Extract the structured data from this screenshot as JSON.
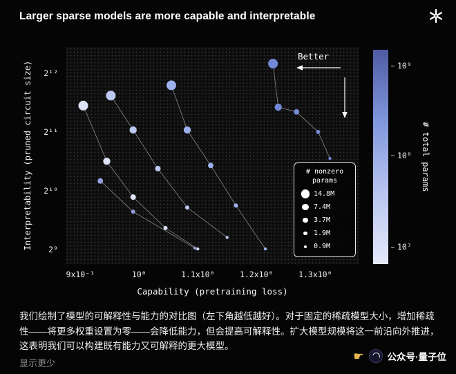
{
  "page": {
    "title": "Larger sparse models are more capable and interpretable",
    "caption": "我们绘制了模型的可解释性与能力的对比图（左下角越低越好）。对于固定的稀疏模型大小，增加稀疏性——将更多权重设置为零——会降低能力，但会提高可解释性。扩大模型规模将这一前沿向外推进，这表明我们可以构建既有能力又可解释的更大模型。",
    "show_less": "显示更少",
    "footer_label": "公众号·量子位"
  },
  "icons": {
    "hand_icon": "☛",
    "openai_logo": "flower-mark",
    "qbitai_logo": "circular-swirl-badge"
  },
  "chart_data": {
    "type": "scatter",
    "title": "Larger sparse models are more capable and interpretable",
    "xlabel": "Capability (pretraining loss)",
    "ylabel": "Interpretability (pruned circuit size)",
    "better_label": "Better",
    "grid": "dotted-background",
    "legend_position": "lower-right-inside",
    "xlim": [
      0.875,
      1.375
    ],
    "ylim_exp": [
      8.75,
      12.45
    ],
    "x_ticks": [
      {
        "value": 0.9,
        "label": "9x10⁻¹"
      },
      {
        "value": 1.0,
        "label": "10⁰"
      },
      {
        "value": 1.1,
        "label": "1.1x10⁰"
      },
      {
        "value": 1.2,
        "label": "1.2x10⁰"
      },
      {
        "value": 1.3,
        "label": "1.3x10⁰"
      }
    ],
    "y_ticks": [
      {
        "exp": 9,
        "label": "2⁹"
      },
      {
        "exp": 10,
        "label": "2¹⁰"
      },
      {
        "exp": 11,
        "label": "2¹¹"
      },
      {
        "exp": 12,
        "label": "2¹²"
      }
    ],
    "legend": {
      "title_lines": [
        "# nonzero",
        "params"
      ],
      "sizes": [
        {
          "label": "14.8M",
          "radius": 7
        },
        {
          "label": "7.4M",
          "radius": 5.2
        },
        {
          "label": "3.7M",
          "radius": 4
        },
        {
          "label": "1.9M",
          "radius": 3
        },
        {
          "label": "0.9M",
          "radius": 2.2
        }
      ]
    },
    "colorbar": {
      "label": "# total params",
      "stops": [
        "#4f5ba3",
        "#8097dc",
        "#b9c5f0",
        "#e4e9fa"
      ],
      "ticks": [
        {
          "label": "10⁹",
          "pos": 0.074
        },
        {
          "label": "10⁸",
          "pos": 0.494
        },
        {
          "label": "10⁷",
          "pos": 0.92
        }
      ]
    },
    "series": [
      {
        "name": "series-1",
        "total_params_approx": "10⁷",
        "color": "#dde3f9",
        "points": [
          {
            "x": 0.905,
            "y": 2800,
            "nonzero": "14.8M"
          },
          {
            "x": 0.945,
            "y": 1450,
            "nonzero": "7.4M"
          },
          {
            "x": 0.99,
            "y": 950,
            "nonzero": "3.7M"
          },
          {
            "x": 1.045,
            "y": 660,
            "nonzero": "1.9M"
          },
          {
            "x": 1.1,
            "y": 515,
            "nonzero": "0.9M"
          }
        ]
      },
      {
        "name": "series-2",
        "total_params_approx": "3x10⁷",
        "color": "#bcc8f2",
        "points": [
          {
            "x": 0.952,
            "y": 3150,
            "nonzero": "14.8M"
          },
          {
            "x": 0.99,
            "y": 2100,
            "nonzero": "7.4M"
          },
          {
            "x": 1.032,
            "y": 1330,
            "nonzero": "3.7M"
          },
          {
            "x": 1.082,
            "y": 840,
            "nonzero": "1.9M"
          },
          {
            "x": 1.15,
            "y": 590,
            "nonzero": "0.9M"
          }
        ]
      },
      {
        "name": "series-3",
        "total_params_approx": "10⁸",
        "color": "#9db1ec",
        "points": [
          {
            "x": 1.055,
            "y": 3560,
            "nonzero": "14.8M"
          },
          {
            "x": 1.082,
            "y": 2100,
            "nonzero": "7.4M"
          },
          {
            "x": 1.122,
            "y": 1380,
            "nonzero": "3.7M"
          },
          {
            "x": 1.165,
            "y": 860,
            "nonzero": "1.9M"
          },
          {
            "x": 1.215,
            "y": 515,
            "nonzero": "0.9M"
          }
        ]
      },
      {
        "name": "series-4",
        "total_params_approx": "3x10⁸",
        "color": "#989ddf",
        "points": [
          {
            "x": 0.934,
            "y": 1150,
            "nonzero": "3.7M"
          },
          {
            "x": 0.99,
            "y": 800,
            "nonzero": "1.9M"
          },
          {
            "x": 1.095,
            "y": 520,
            "nonzero": "0.9M"
          }
        ]
      },
      {
        "name": "series-5",
        "total_params_approx": "10⁹",
        "color": "#7289d6",
        "points": [
          {
            "x": 1.228,
            "y": 4600,
            "nonzero": "14.8M"
          },
          {
            "x": 1.237,
            "y": 2750,
            "nonzero": "7.4M"
          },
          {
            "x": 1.268,
            "y": 2600,
            "nonzero": "3.7M"
          },
          {
            "x": 1.305,
            "y": 2050,
            "nonzero": "1.9M"
          },
          {
            "x": 1.325,
            "y": 1500,
            "nonzero": "0.9M"
          }
        ]
      }
    ]
  }
}
